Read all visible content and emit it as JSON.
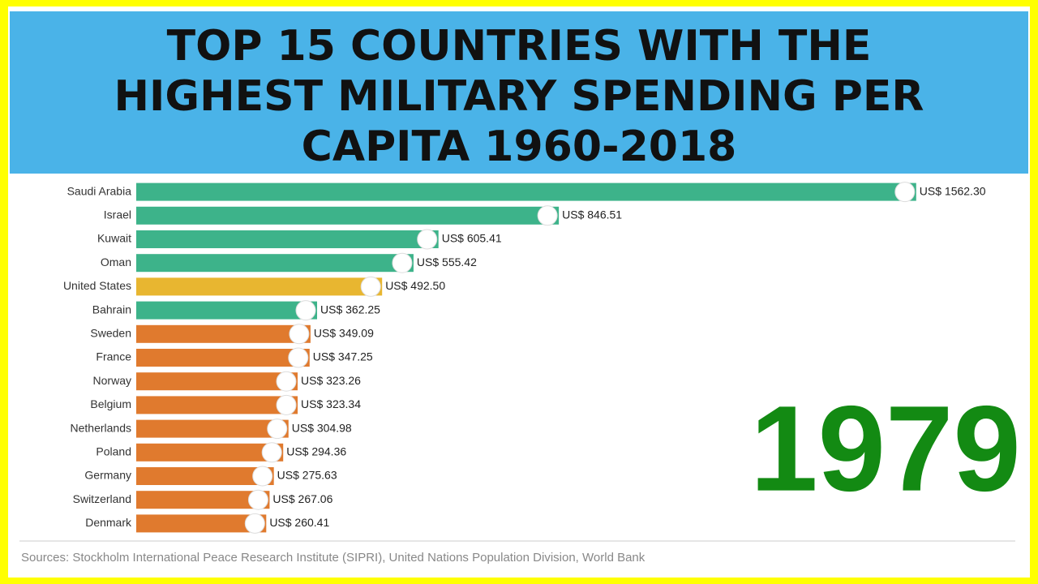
{
  "chart_data": {
    "type": "bar",
    "orientation": "horizontal",
    "title": "TOP 15 COUNTRIES WITH THE HIGHEST MILITARY SPENDING PER CAPITA 1960-2018",
    "categories": [
      "Saudi Arabia",
      "Israel",
      "Kuwait",
      "Oman",
      "United States",
      "Bahrain",
      "Sweden",
      "France",
      "Norway",
      "Belgium",
      "Netherlands",
      "Poland",
      "Germany",
      "Switzerland",
      "Denmark"
    ],
    "values": [
      1562.3,
      846.51,
      605.41,
      555.42,
      492.5,
      362.25,
      349.09,
      347.25,
      323.26,
      323.34,
      304.98,
      294.36,
      275.63,
      267.06,
      260.41
    ],
    "value_labels": [
      "US$ 1562.30",
      "US$ 846.51",
      "US$ 605.41",
      "US$ 555.42",
      "US$ 492.50",
      "US$ 362.25",
      "US$ 349.09",
      "US$ 347.25",
      "US$ 323.26",
      "US$ 323.34",
      "US$ 304.98",
      "US$ 294.36",
      "US$ 275.63",
      "US$ 267.06",
      "US$ 260.41"
    ],
    "colors": [
      "#3db38a",
      "#3db38a",
      "#3db38a",
      "#3db38a",
      "#e8b630",
      "#3db38a",
      "#e07a2e",
      "#e07a2e",
      "#e07a2e",
      "#e07a2e",
      "#e07a2e",
      "#e07a2e",
      "#e07a2e",
      "#e07a2e",
      "#e07a2e"
    ],
    "xlim": [
      0,
      1600
    ],
    "annotation": "1979",
    "annotation_color": "#138a13",
    "source": "Sources: Stockholm International Peace Research Institute (SIPRI), United Nations Population Division, World Bank"
  }
}
